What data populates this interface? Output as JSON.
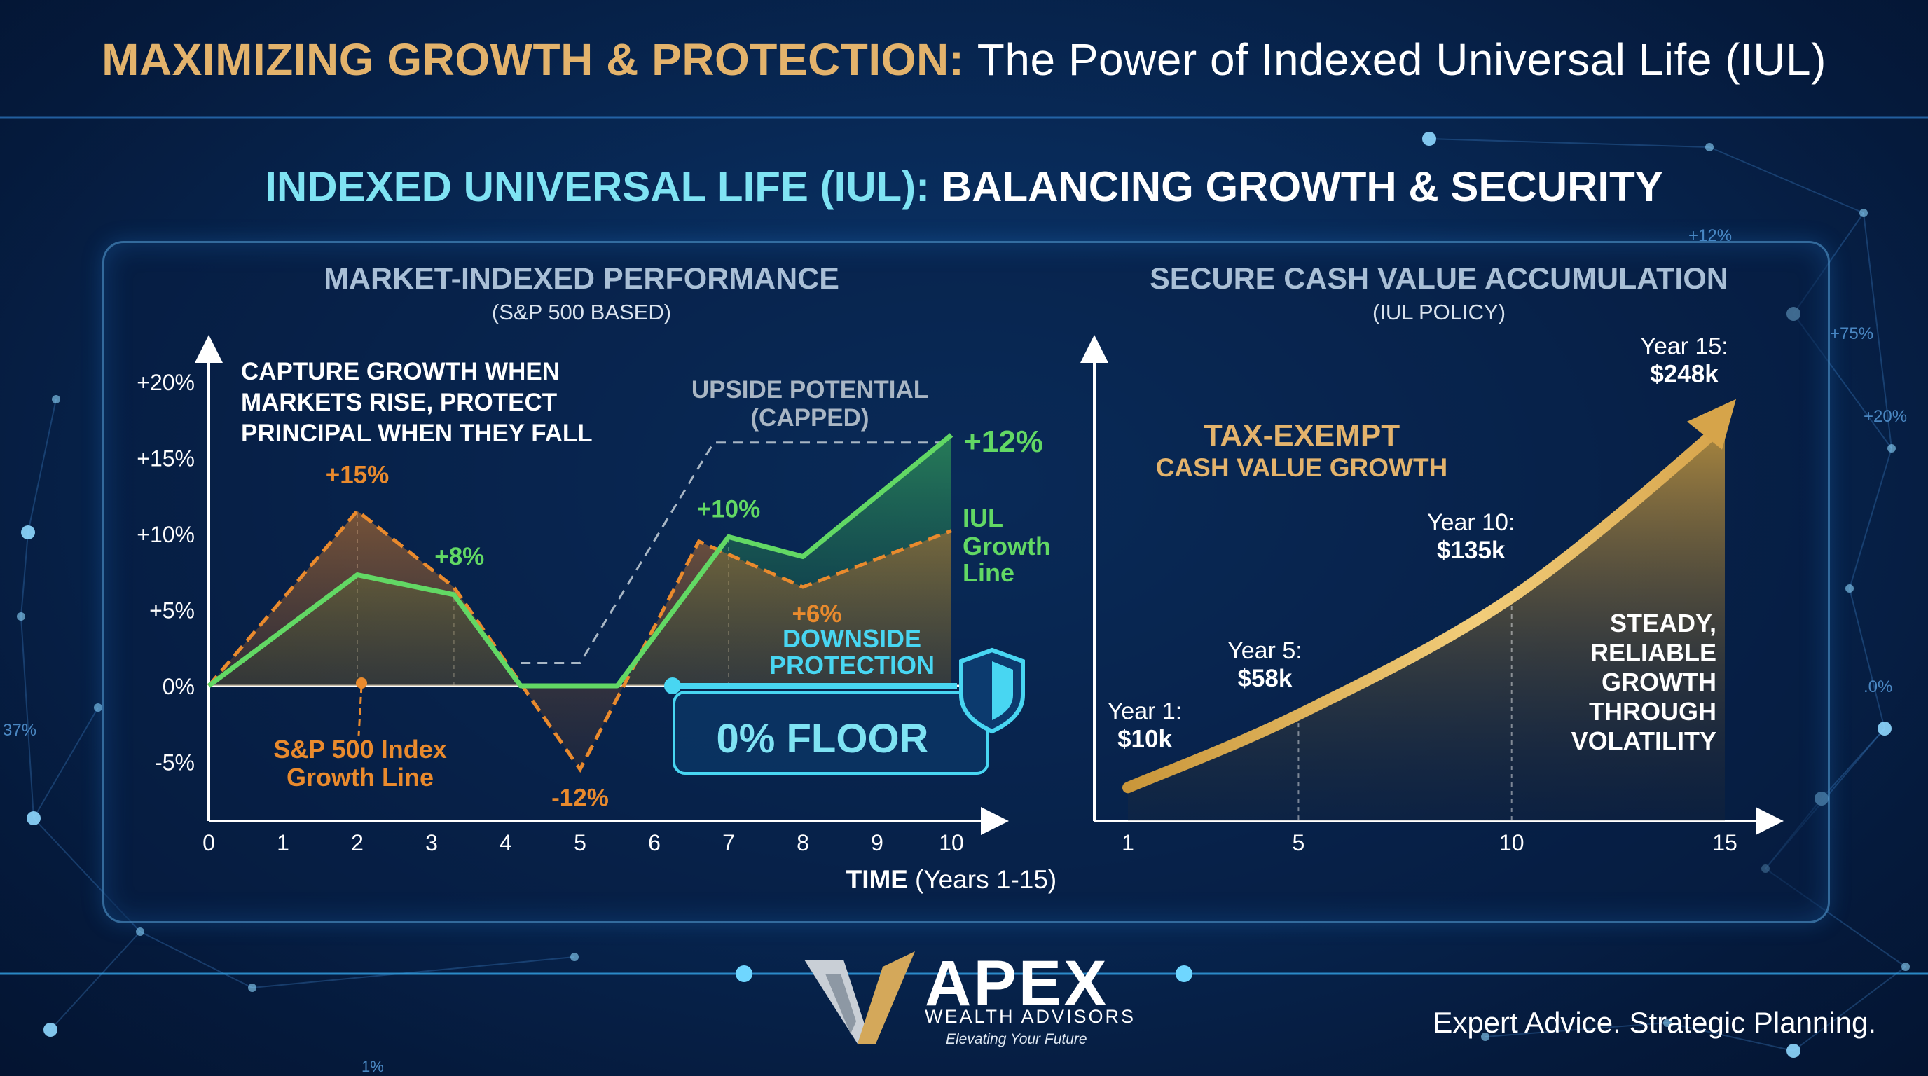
{
  "header": {
    "title_highlight": "MAXIMIZING GROWTH & PROTECTION:",
    "title_rest": "The Power of Indexed Universal Life (IUL)"
  },
  "subtitle": {
    "highlight": "INDEXED UNIVERSAL LIFE (IUL):",
    "rest": "BALANCING GROWTH & SECURITY"
  },
  "background_numbers": [
    "+12%",
    "+75%",
    "+20%",
    ".0%",
    "37%",
    "1%"
  ],
  "colors": {
    "gold": "#e3b36c",
    "orange": "#e98a2d",
    "green": "#62d864",
    "cyan": "#48d6f2",
    "navy": "#082a58"
  },
  "chart_data": [
    {
      "type": "line",
      "title": "MARKET-INDEXED PERFORMANCE",
      "subtitle": "(S&P 500 BASED)",
      "xlabel_bold": "TIME",
      "xlabel_rest": "(Years 1-15)",
      "x_ticks": [
        "0",
        "1",
        "2",
        "3",
        "4",
        "5",
        "6",
        "7",
        "8",
        "9",
        "10"
      ],
      "y_ticks": [
        "+20%",
        "+15%",
        "+10%",
        "+5%",
        "0%",
        "-5%"
      ],
      "xlim": [
        0,
        10
      ],
      "ylim": [
        -9,
        23
      ],
      "series": [
        {
          "name": "S&P 500 Index Growth Line",
          "style": "dashed",
          "color": "#e98a2d",
          "x": [
            0,
            2,
            3.3,
            5,
            6.6,
            8,
            10
          ],
          "y": [
            0,
            11.5,
            6.5,
            -5.5,
            9.5,
            6.5,
            10.2
          ]
        },
        {
          "name": "IUL Growth Line",
          "style": "solid",
          "color": "#62d864",
          "x": [
            0,
            2,
            3.3,
            4.2,
            5,
            5.5,
            7,
            8,
            10
          ],
          "y": [
            0,
            7.3,
            6,
            0,
            0,
            0,
            9.8,
            8.5,
            16.5
          ]
        },
        {
          "name": "UPSIDE POTENTIAL (CAPPED)",
          "style": "dashed",
          "color": "#9fb0c2",
          "x": [
            4.2,
            5,
            6.8,
            10
          ],
          "y": [
            1.5,
            1.5,
            16,
            16
          ]
        }
      ],
      "point_labels": [
        {
          "text": "+15%",
          "x": 2,
          "y": 11.5,
          "color": "orange"
        },
        {
          "text": "+8%",
          "x": 3.3,
          "y": 6.5,
          "color": "green"
        },
        {
          "text": "-12%",
          "x": 5,
          "y": -5.5,
          "color": "orange"
        },
        {
          "text": "+10%",
          "x": 7,
          "y": 9.8,
          "color": "green"
        },
        {
          "text": "+6%",
          "x": 8,
          "y": 6.5,
          "color": "orange"
        },
        {
          "text": "+12%",
          "x": 10,
          "y": 16.5,
          "color": "green"
        }
      ],
      "annotations": {
        "capture": [
          "CAPTURE GROWTH WHEN",
          "MARKETS RISE, PROTECT",
          "PRINCIPAL WHEN THEY FALL"
        ],
        "upside": [
          "UPSIDE POTENTIAL",
          "(CAPPED)"
        ],
        "iul_label": [
          "IUL",
          "Growth",
          "Line"
        ],
        "sp_label": [
          "S&P 500 Index",
          "Growth Line"
        ],
        "downside": [
          "DOWNSIDE",
          "PROTECTION"
        ],
        "floor": "0% FLOOR"
      }
    },
    {
      "type": "area",
      "title": "SECURE CASH VALUE ACCUMULATION",
      "subtitle": "(IUL POLICY)",
      "x_ticks": [
        "1",
        "5",
        "10",
        "15"
      ],
      "xlim": [
        1,
        15
      ],
      "ylim": [
        0,
        270
      ],
      "series": [
        {
          "name": "Cash Value",
          "x": [
            1,
            5,
            10,
            15
          ],
          "y": [
            10,
            58,
            135,
            248
          ]
        }
      ],
      "point_labels": [
        {
          "year": "Year 1:",
          "value": "$10k"
        },
        {
          "year": "Year 5:",
          "value": "$58k"
        },
        {
          "year": "Year 10:",
          "value": "$135k"
        },
        {
          "year": "Year 15:",
          "value": "$248k"
        }
      ],
      "annotations": {
        "tax_title": "TAX-EXEMPT",
        "tax_sub": "CASH VALUE GROWTH",
        "steady": [
          "STEADY,",
          "RELIABLE",
          "GROWTH",
          "THROUGH",
          "VOLATILITY"
        ]
      }
    }
  ],
  "logo": {
    "name": "APEX",
    "sub": "WEALTH ADVISORS",
    "tagline": "Elevating Your Future"
  },
  "footer": {
    "tagline": "Expert Advice. Strategic Planning."
  }
}
